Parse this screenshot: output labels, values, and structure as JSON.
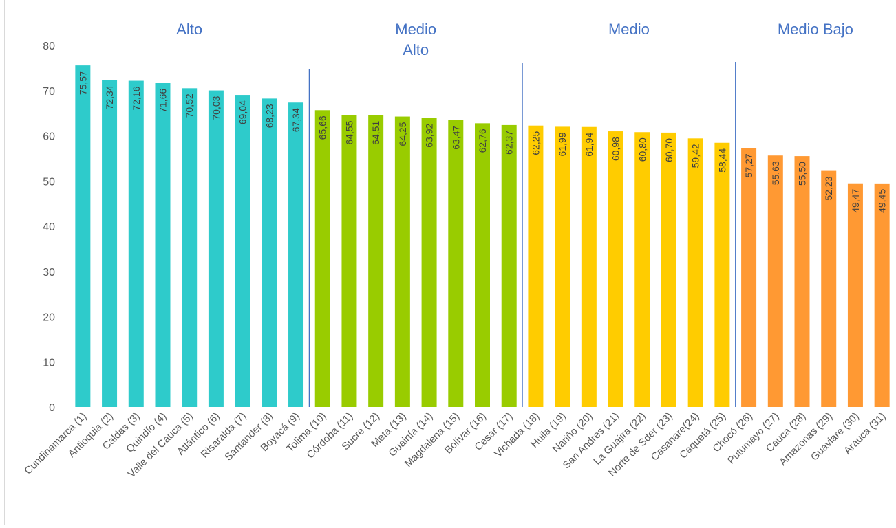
{
  "chart_data": {
    "type": "bar",
    "ylim": [
      0,
      80
    ],
    "yticks": [
      0,
      10,
      20,
      30,
      40,
      50,
      60,
      70,
      80
    ],
    "grid": false,
    "categories": [
      "Cundinamarca (1)",
      "Antioquia (2)",
      "Caldas (3)",
      "Quindío (4)",
      "Valle del Cauca (5)",
      "Atlántico (6)",
      "Risaralda (7)",
      "Santander (8)",
      "Boyacá (9)",
      "Tolima (10)",
      "Córdoba (11)",
      "Sucre (12)",
      "Meta (13)",
      "Guainía (14)",
      "Magdalena (15)",
      "Bolívar (16)",
      "Cesar (17)",
      "Vichada (18)",
      "Huila (19)",
      "Nariño (20)",
      "San Andres  (21)",
      "La Guajira (22)",
      "Norte de Sder (23)",
      "Casanare(24)",
      "Caquetá (25)",
      "Chocó (26)",
      "Putumayo (27)",
      "Cauca (28)",
      "Amazonas (29)",
      "Guaviare (30)",
      "Arauca (31)"
    ],
    "values": [
      75.57,
      72.34,
      72.16,
      71.66,
      70.52,
      70.03,
      69.04,
      68.23,
      67.34,
      65.66,
      64.55,
      64.51,
      64.25,
      63.92,
      63.47,
      62.76,
      62.37,
      62.25,
      61.99,
      61.94,
      60.98,
      60.8,
      60.7,
      59.42,
      58.44,
      57.27,
      55.63,
      55.5,
      52.23,
      49.47,
      49.45
    ],
    "data_labels": [
      "75,57",
      "72,34",
      "72,16",
      "71,66",
      "70,52",
      "70,03",
      "69,04",
      "68,23",
      "67,34",
      "65,66",
      "64,55",
      "64,51",
      "64,25",
      "63,92",
      "63,47",
      "62,76",
      "62,37",
      "62,25",
      "61,99",
      "61,94",
      "60,98",
      "60,80",
      "60,70",
      "59,42",
      "58,44",
      "57,27",
      "55,63",
      "55,50",
      "52,23",
      "49,47",
      "49,45"
    ],
    "groups": [
      {
        "label_lines": [
          "Alto"
        ],
        "count": 9,
        "color": "#2ECBCB"
      },
      {
        "label_lines": [
          "Medio",
          "Alto"
        ],
        "count": 8,
        "color": "#99CC00"
      },
      {
        "label_lines": [
          "Medio"
        ],
        "count": 8,
        "color": "#FFCC00"
      },
      {
        "label_lines": [
          "Medio Bajo"
        ],
        "count": 6,
        "color": "#FF9933"
      }
    ],
    "group_label_color": "#4472C4",
    "divider_color": "#4472C4"
  }
}
